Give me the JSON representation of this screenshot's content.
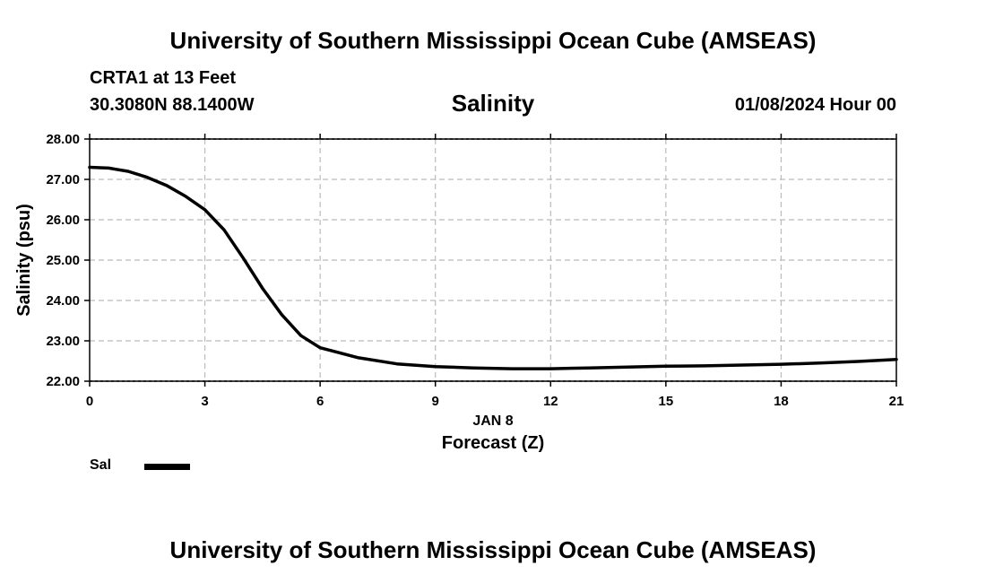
{
  "header": {
    "title": "University of Southern Mississippi Ocean Cube (AMSEAS)",
    "station": "CRTA1 at 13 Feet",
    "coordinates": "30.3080N  88.1400W",
    "datetime": "01/08/2024 Hour 00"
  },
  "footer": {
    "title": "University of Southern Mississippi Ocean Cube (AMSEAS)"
  },
  "legend": {
    "series_label": "Sal",
    "color": "#000000"
  },
  "chart_data": {
    "type": "line",
    "title": "Salinity",
    "xlabel": "Forecast (Z)",
    "ylabel": "Salinity (psu)",
    "date_label": "JAN 8",
    "xlim": [
      0,
      21
    ],
    "ylim": [
      22,
      28
    ],
    "xticks": [
      0,
      3,
      6,
      9,
      12,
      15,
      18,
      21
    ],
    "xtick_labels": [
      "0",
      "3",
      "6",
      "9",
      "12",
      "15",
      "18",
      "21"
    ],
    "yticks": [
      22,
      23,
      24,
      25,
      26,
      27,
      28
    ],
    "ytick_labels": [
      "22.00",
      "23.00",
      "24.00",
      "25.00",
      "26.00",
      "27.00",
      "28.00"
    ],
    "grid": true,
    "series": [
      {
        "name": "Sal",
        "color": "#000000",
        "x": [
          0,
          0.5,
          1,
          1.5,
          2,
          2.5,
          3,
          3.5,
          4,
          4.5,
          5,
          5.5,
          6,
          7,
          8,
          9,
          10,
          11,
          12,
          13,
          14,
          15,
          16,
          17,
          18,
          19,
          20,
          21
        ],
        "y": [
          27.3,
          27.28,
          27.2,
          27.05,
          26.85,
          26.58,
          26.25,
          25.75,
          25.05,
          24.3,
          23.65,
          23.13,
          22.83,
          22.58,
          22.43,
          22.36,
          22.33,
          22.31,
          22.31,
          22.33,
          22.35,
          22.37,
          22.38,
          22.4,
          22.42,
          22.45,
          22.49,
          22.54
        ]
      }
    ]
  }
}
